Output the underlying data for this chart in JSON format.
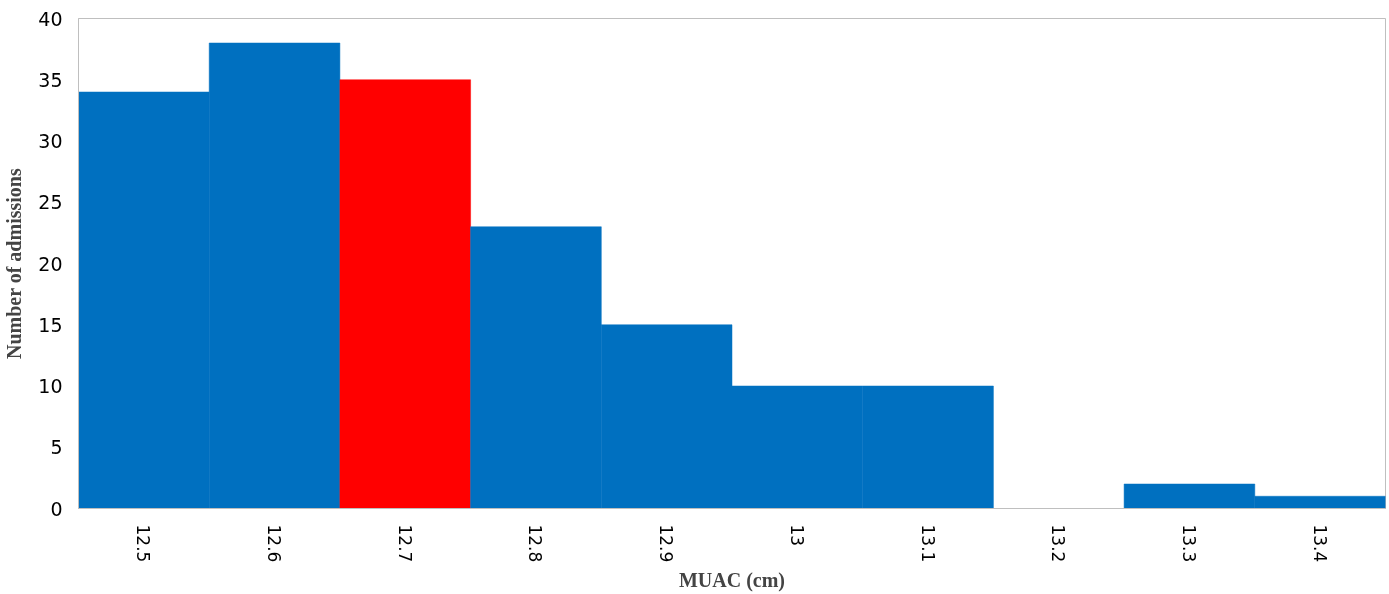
{
  "chart_data": {
    "type": "bar",
    "xlabel": "MUAC (cm)",
    "ylabel": "Number of admissions",
    "categories": [
      "12.5",
      "12.6",
      "12.7",
      "12.8",
      "12.9",
      "13",
      "13.1",
      "13.2",
      "13.3",
      "13.4"
    ],
    "values": [
      34,
      38,
      35,
      23,
      15,
      10,
      10,
      0,
      2,
      1
    ],
    "colors": [
      "#0070c0",
      "#0070c0",
      "#ff0000",
      "#0070c0",
      "#0070c0",
      "#0070c0",
      "#0070c0",
      "#0070c0",
      "#0070c0",
      "#0070c0"
    ],
    "ylim": [
      0,
      40
    ],
    "yticks": [
      0,
      5,
      10,
      15,
      20,
      25,
      30,
      35,
      40
    ],
    "grid": false
  }
}
